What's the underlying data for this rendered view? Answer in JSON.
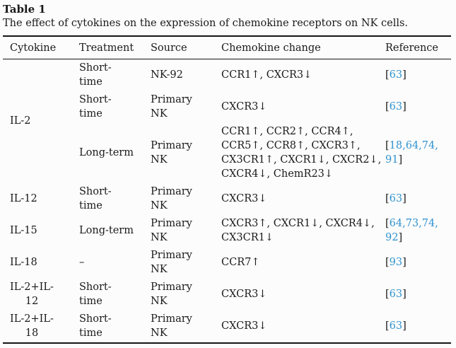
{
  "link_color": "#3093cf",
  "table": {
    "label": "Table 1",
    "caption": "The effect of cytokines on the expression of chemokine receptors on NK cells.",
    "columns": [
      "Cytokine",
      "Treatment",
      "Source",
      "Chemokine change",
      "Reference"
    ],
    "rows": [
      {
        "cytokine": "IL-2",
        "treatment": "Short-\ntime",
        "source": "NK-92",
        "chemokine_change": "CCR1↑, CXCR3↓",
        "reference": {
          "open": "[",
          "links": "63",
          "close": "]"
        }
      },
      {
        "treatment": "Short-\ntime",
        "source": "Primary\nNK",
        "chemokine_change": "CXCR3↓",
        "reference": {
          "open": "[",
          "links": "63",
          "close": "]"
        }
      },
      {
        "treatment": "Long-term",
        "source": "Primary\nNK",
        "chemokine_change": "CCR1↑, CCR2↑, CCR4↑,\nCCR5↑, CCR8↑, CXCR3↑,\nCX3CR1↑, CXCR1↓, CXCR2↓,\nCXCR4↓, ChemR23↓",
        "reference": {
          "open": "[",
          "links": "18,64,74,\n91",
          "close": "]"
        }
      },
      {
        "cytokine": "IL-12",
        "treatment": "Short-\ntime",
        "source": "Primary\nNK",
        "chemokine_change": "CXCR3↓",
        "reference": {
          "open": "[",
          "links": "63",
          "close": "]"
        }
      },
      {
        "cytokine": "IL-15",
        "treatment": "Long-term",
        "source": "Primary\nNK",
        "chemokine_change": "CXCR3↑, CXCR1↓, CXCR4↓,\nCX3CR1↓",
        "reference": {
          "open": "[",
          "links": "64,73,74,\n92",
          "close": "]"
        }
      },
      {
        "cytokine": "IL-18",
        "treatment": "–",
        "source": "Primary\nNK",
        "chemokine_change": "CCR7↑",
        "reference": {
          "open": "[",
          "links": "93",
          "close": "]"
        }
      },
      {
        "cytokine": "IL-2+IL-\n12",
        "treatment": "Short-\ntime",
        "source": "Primary\nNK",
        "chemokine_change": "CXCR3↓",
        "reference": {
          "open": "[",
          "links": "63",
          "close": "]"
        }
      },
      {
        "cytokine": "IL-2+IL-\n18",
        "treatment": "Short-\ntime",
        "source": "Primary\nNK",
        "chemokine_change": "CXCR3↓",
        "reference": {
          "open": "[",
          "links": "63",
          "close": "]"
        }
      }
    ]
  }
}
